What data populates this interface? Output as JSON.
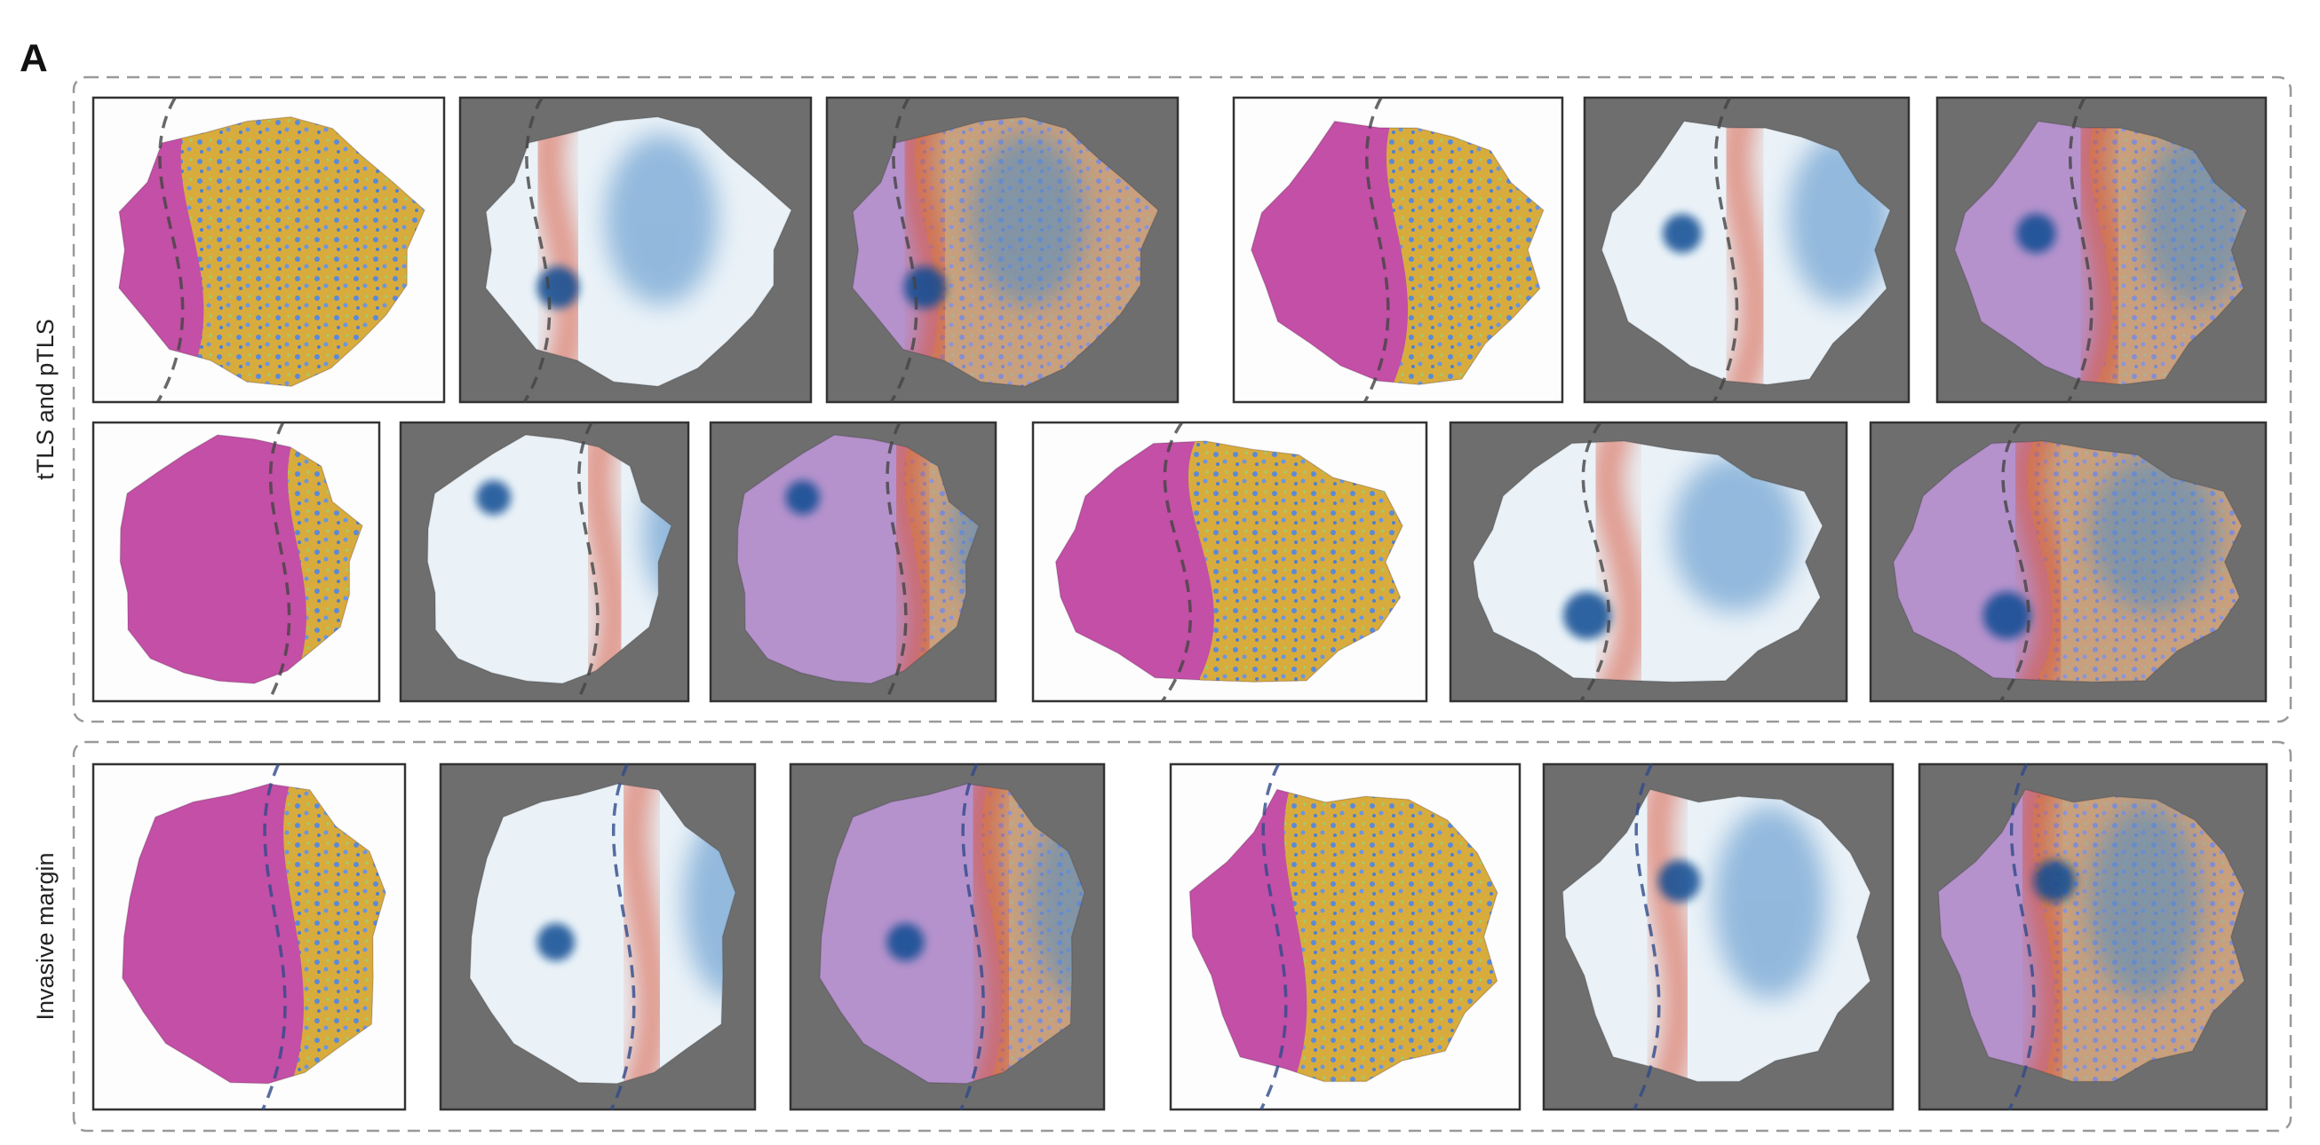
{
  "figure": {
    "panel_label": "A",
    "groups": [
      {
        "label": "tTLS and pTLS"
      },
      {
        "label": "Invasive margin"
      }
    ]
  }
}
